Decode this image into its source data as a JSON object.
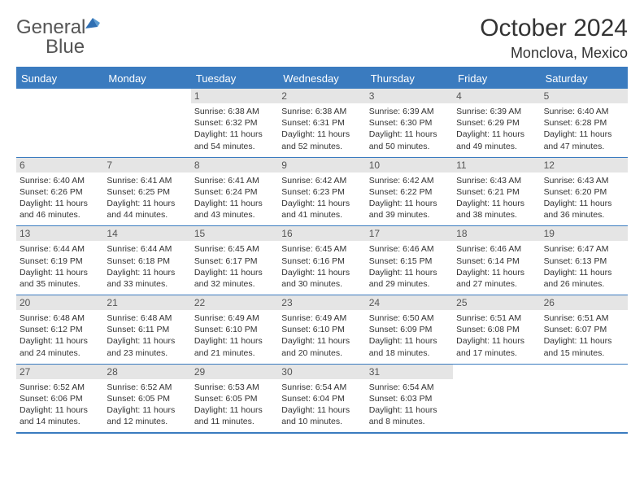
{
  "header": {
    "logo_text_1": "General",
    "logo_text_2": "Blue",
    "month_title": "October 2024",
    "location": "Monclova, Mexico"
  },
  "colors": {
    "brand_blue": "#3a7bbf",
    "daynum_bg": "#e5e5e5",
    "text": "#333333",
    "bg": "#ffffff"
  },
  "dow": [
    "Sunday",
    "Monday",
    "Tuesday",
    "Wednesday",
    "Thursday",
    "Friday",
    "Saturday"
  ],
  "days": [
    {
      "n": "",
      "sr": "",
      "ss": "",
      "dl": ""
    },
    {
      "n": "",
      "sr": "",
      "ss": "",
      "dl": ""
    },
    {
      "n": "1",
      "sr": "6:38 AM",
      "ss": "6:32 PM",
      "dl": "11 hours and 54 minutes."
    },
    {
      "n": "2",
      "sr": "6:38 AM",
      "ss": "6:31 PM",
      "dl": "11 hours and 52 minutes."
    },
    {
      "n": "3",
      "sr": "6:39 AM",
      "ss": "6:30 PM",
      "dl": "11 hours and 50 minutes."
    },
    {
      "n": "4",
      "sr": "6:39 AM",
      "ss": "6:29 PM",
      "dl": "11 hours and 49 minutes."
    },
    {
      "n": "5",
      "sr": "6:40 AM",
      "ss": "6:28 PM",
      "dl": "11 hours and 47 minutes."
    },
    {
      "n": "6",
      "sr": "6:40 AM",
      "ss": "6:26 PM",
      "dl": "11 hours and 46 minutes."
    },
    {
      "n": "7",
      "sr": "6:41 AM",
      "ss": "6:25 PM",
      "dl": "11 hours and 44 minutes."
    },
    {
      "n": "8",
      "sr": "6:41 AM",
      "ss": "6:24 PM",
      "dl": "11 hours and 43 minutes."
    },
    {
      "n": "9",
      "sr": "6:42 AM",
      "ss": "6:23 PM",
      "dl": "11 hours and 41 minutes."
    },
    {
      "n": "10",
      "sr": "6:42 AM",
      "ss": "6:22 PM",
      "dl": "11 hours and 39 minutes."
    },
    {
      "n": "11",
      "sr": "6:43 AM",
      "ss": "6:21 PM",
      "dl": "11 hours and 38 minutes."
    },
    {
      "n": "12",
      "sr": "6:43 AM",
      "ss": "6:20 PM",
      "dl": "11 hours and 36 minutes."
    },
    {
      "n": "13",
      "sr": "6:44 AM",
      "ss": "6:19 PM",
      "dl": "11 hours and 35 minutes."
    },
    {
      "n": "14",
      "sr": "6:44 AM",
      "ss": "6:18 PM",
      "dl": "11 hours and 33 minutes."
    },
    {
      "n": "15",
      "sr": "6:45 AM",
      "ss": "6:17 PM",
      "dl": "11 hours and 32 minutes."
    },
    {
      "n": "16",
      "sr": "6:45 AM",
      "ss": "6:16 PM",
      "dl": "11 hours and 30 minutes."
    },
    {
      "n": "17",
      "sr": "6:46 AM",
      "ss": "6:15 PM",
      "dl": "11 hours and 29 minutes."
    },
    {
      "n": "18",
      "sr": "6:46 AM",
      "ss": "6:14 PM",
      "dl": "11 hours and 27 minutes."
    },
    {
      "n": "19",
      "sr": "6:47 AM",
      "ss": "6:13 PM",
      "dl": "11 hours and 26 minutes."
    },
    {
      "n": "20",
      "sr": "6:48 AM",
      "ss": "6:12 PM",
      "dl": "11 hours and 24 minutes."
    },
    {
      "n": "21",
      "sr": "6:48 AM",
      "ss": "6:11 PM",
      "dl": "11 hours and 23 minutes."
    },
    {
      "n": "22",
      "sr": "6:49 AM",
      "ss": "6:10 PM",
      "dl": "11 hours and 21 minutes."
    },
    {
      "n": "23",
      "sr": "6:49 AM",
      "ss": "6:10 PM",
      "dl": "11 hours and 20 minutes."
    },
    {
      "n": "24",
      "sr": "6:50 AM",
      "ss": "6:09 PM",
      "dl": "11 hours and 18 minutes."
    },
    {
      "n": "25",
      "sr": "6:51 AM",
      "ss": "6:08 PM",
      "dl": "11 hours and 17 minutes."
    },
    {
      "n": "26",
      "sr": "6:51 AM",
      "ss": "6:07 PM",
      "dl": "11 hours and 15 minutes."
    },
    {
      "n": "27",
      "sr": "6:52 AM",
      "ss": "6:06 PM",
      "dl": "11 hours and 14 minutes."
    },
    {
      "n": "28",
      "sr": "6:52 AM",
      "ss": "6:05 PM",
      "dl": "11 hours and 12 minutes."
    },
    {
      "n": "29",
      "sr": "6:53 AM",
      "ss": "6:05 PM",
      "dl": "11 hours and 11 minutes."
    },
    {
      "n": "30",
      "sr": "6:54 AM",
      "ss": "6:04 PM",
      "dl": "11 hours and 10 minutes."
    },
    {
      "n": "31",
      "sr": "6:54 AM",
      "ss": "6:03 PM",
      "dl": "11 hours and 8 minutes."
    },
    {
      "n": "",
      "sr": "",
      "ss": "",
      "dl": ""
    },
    {
      "n": "",
      "sr": "",
      "ss": "",
      "dl": ""
    }
  ],
  "labels": {
    "sunrise_prefix": "Sunrise: ",
    "sunset_prefix": "Sunset: ",
    "daylight_prefix": "Daylight: "
  }
}
